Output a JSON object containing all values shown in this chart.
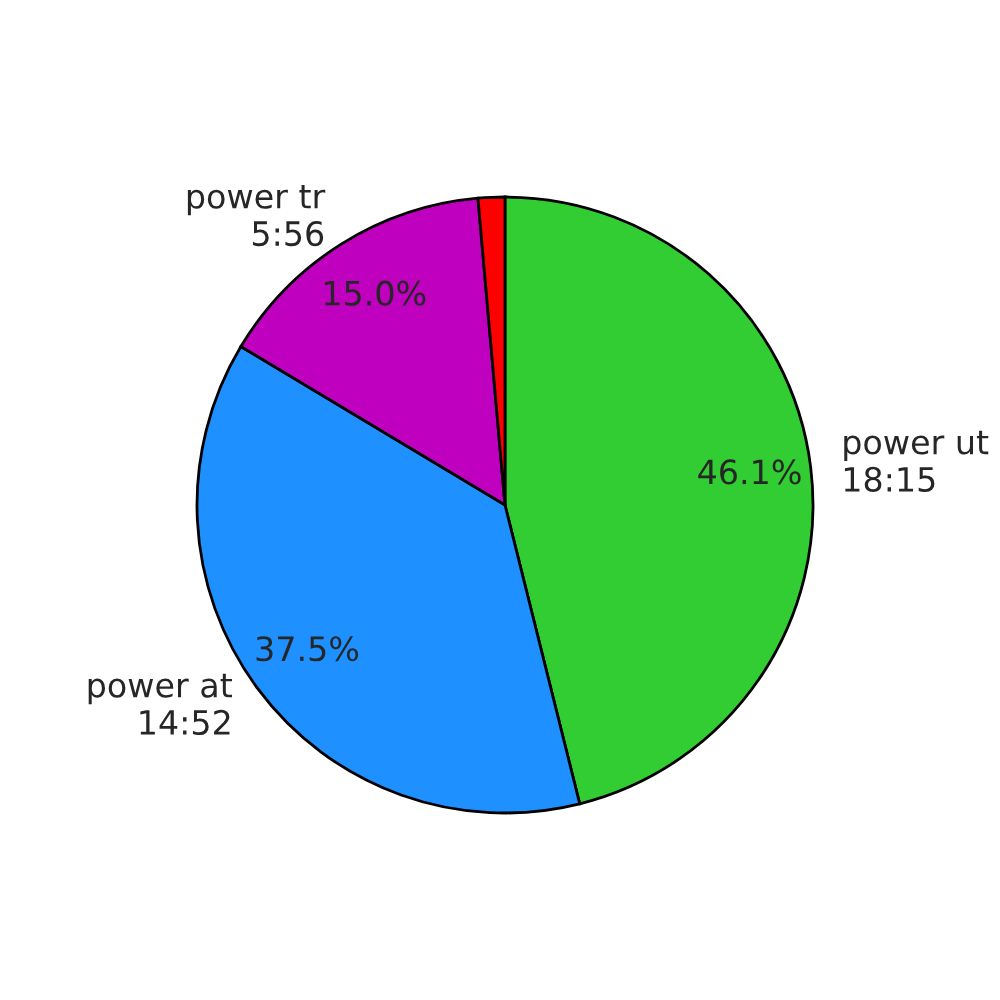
{
  "chart_data": {
    "type": "pie",
    "categories": [
      "power ut\n18:15",
      "power at\n14:52",
      "power tr\n5:56",
      null
    ],
    "values": [
      46.1,
      37.5,
      15.0,
      1.4
    ],
    "value_labels": [
      "46.1%",
      "37.5%",
      "15.0%",
      null
    ],
    "colors": [
      "#32cd32",
      "#1e90ff",
      "#bf00bf",
      "#ff0000"
    ]
  }
}
